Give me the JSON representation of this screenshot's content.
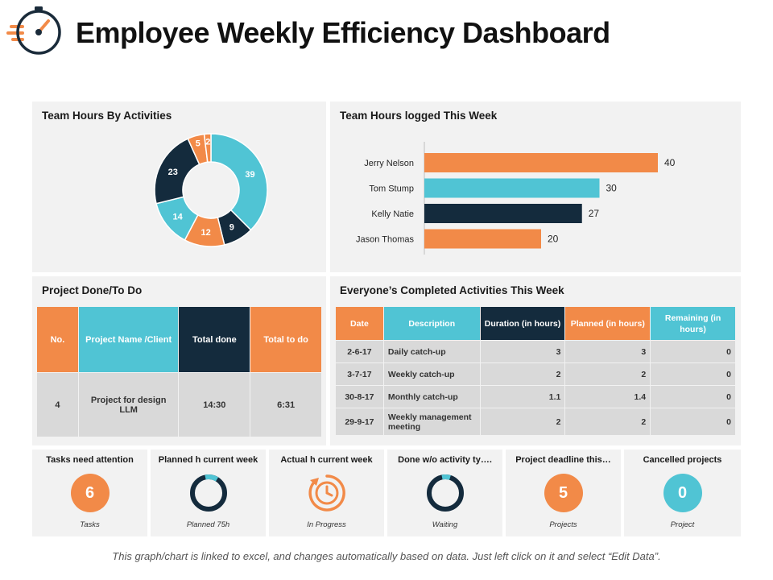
{
  "header": {
    "title": "Employee Weekly Efficiency Dashboard",
    "logo_icon": "stopwatch-icon"
  },
  "colors": {
    "orange": "#f28a48",
    "teal": "#50c4d4",
    "navy": "#142b3d",
    "panel": "#f2f2f2",
    "cell": "#d9d9d9"
  },
  "chart_data": [
    {
      "type": "pie",
      "title": "Team Hours By Activities",
      "donut": true,
      "values": [
        39,
        9,
        12,
        14,
        23,
        5,
        2
      ],
      "colors": [
        "#50c4d4",
        "#142b3d",
        "#f28a48",
        "#50c4d4",
        "#142b3d",
        "#f28a48",
        "#f28a48"
      ]
    },
    {
      "type": "bar",
      "orientation": "horizontal",
      "title": "Team Hours logged This Week",
      "categories": [
        "Jerry Nelson",
        "Tom Stump",
        "Kelly Natie",
        "Jason Thomas"
      ],
      "values": [
        40,
        30,
        27,
        20
      ],
      "colors": [
        "#f28a48",
        "#50c4d4",
        "#142b3d",
        "#f28a48"
      ],
      "xlim": [
        0,
        40
      ]
    }
  ],
  "project_panel": {
    "title": "Project Done/To Do",
    "headers": [
      "No.",
      "Project Name /Client",
      "Total done",
      "Total to do"
    ],
    "row": [
      "4",
      "Project for design LLM",
      "14:30",
      "6:31"
    ]
  },
  "activities_panel": {
    "title": "Everyone’s Completed Activities This Week",
    "headers": [
      "Date",
      "Description",
      "Duration (in hours)",
      "Planned (in hours)",
      "Remaining (in hours)"
    ],
    "rows": [
      [
        "2-6-17",
        "Daily catch-up",
        "3",
        "3",
        "0"
      ],
      [
        "3-7-17",
        "Weekly catch-up",
        "2",
        "2",
        "0"
      ],
      [
        "30-8-17",
        "Monthly catch-up",
        "1.1",
        "1.4",
        "0"
      ],
      [
        "29-9-17",
        "Weekly management meeting",
        "2",
        "2",
        "0"
      ]
    ]
  },
  "kpis": [
    {
      "title": "Tasks need attention",
      "value": "6",
      "footer": "Tasks",
      "icon": "number-circle-icon",
      "color": "#f28a48"
    },
    {
      "title": "Planned h current week",
      "footer": "Planned 75h",
      "icon": "ring-progress-icon",
      "progress": 0.12
    },
    {
      "title": "Actual h current week",
      "footer": "In Progress",
      "icon": "clock-progress-icon"
    },
    {
      "title": "Done w/o activity ty….",
      "footer": "Waiting",
      "icon": "ring-progress-icon",
      "progress": 0.08
    },
    {
      "title": "Project deadline this…",
      "value": "5",
      "footer": "Projects",
      "icon": "number-circle-icon",
      "color": "#f28a48"
    },
    {
      "title": "Cancelled projects",
      "value": "0",
      "footer": "Project",
      "icon": "number-circle-icon",
      "color": "#50c4d4"
    }
  ],
  "footnote": "This graph/chart is linked to excel, and changes automatically based on data. Just left click on it and select “Edit Data”."
}
